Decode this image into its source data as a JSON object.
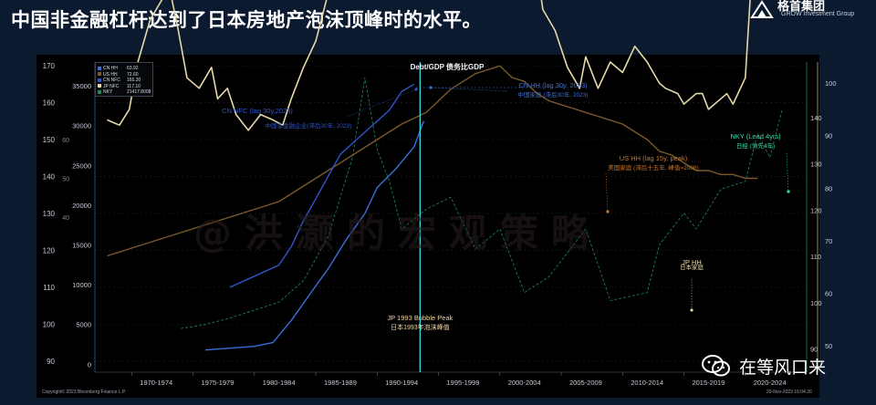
{
  "slide": {
    "title": "中国非金融杠杆达到了日本房地产泡沫顶峰时的水平。",
    "logo_cn": "格首集团",
    "logo_en": "GROW Investment Group",
    "watermark": "@洪灏的宏观策略",
    "wechat_label": "在等风口来",
    "copyright": "Copyright© 2023 Bloomberg Finance L.P.",
    "timestamp": "29-Nov-2023 16:04:20",
    "colors": {
      "background": "#0c1a30",
      "chart_bg": "#000000",
      "title": "#ffffff"
    }
  },
  "legend": [
    {
      "name": "CN HH",
      "value": "63.92",
      "color": "#3b6fd8"
    },
    {
      "name": "US HH",
      "value": "72.60",
      "color": "#7a5a2a"
    },
    {
      "name": "CN NFC",
      "value": "165.30",
      "color": "#2f55c8"
    },
    {
      "name": "JP NFC",
      "value": "117.10",
      "color": "#e6d8a8"
    },
    {
      "name": "NKY",
      "value": "21417.8008",
      "color": "#1e8a5a"
    }
  ],
  "chart_data": {
    "type": "line",
    "title": "Debt/GDP 债务比GDP",
    "x_categories": [
      "1970-1974",
      "1975-1979",
      "1980-1984",
      "1985-1989",
      "1990-1994",
      "1995-1999",
      "2000-2004",
      "2005-2009",
      "2010-2014",
      "2015-2019",
      "2020-2024"
    ],
    "x_range": [
      1967,
      2025
    ],
    "y_axes": [
      {
        "position": "left-outer",
        "ticks": [
          90,
          100,
          110,
          120,
          130,
          140,
          150,
          160,
          170
        ],
        "range": [
          87,
          171
        ]
      },
      {
        "position": "left-inner",
        "ticks": [
          0,
          5000,
          10000,
          15000,
          20000,
          25000,
          30000,
          35000
        ],
        "range": [
          -1000,
          38000
        ]
      },
      {
        "position": "left-partial",
        "ticks": [
          40,
          50,
          60
        ],
        "range": [
          0,
          80
        ]
      },
      {
        "position": "right-inner",
        "ticks": [
          90,
          100,
          110,
          120,
          130,
          140
        ],
        "range": [
          85,
          152
        ]
      },
      {
        "position": "right-outer",
        "ticks": [
          50,
          60,
          70,
          80,
          90,
          100
        ],
        "range": [
          45,
          104
        ]
      }
    ],
    "series": [
      {
        "name": "JP NFC",
        "color": "#e6d8a8",
        "points": [
          [
            1968,
            93
          ],
          [
            1969,
            92
          ],
          [
            1969.8,
            95
          ],
          [
            1970.5,
            104
          ],
          [
            1971.5,
            112
          ],
          [
            1972.5,
            116
          ],
          [
            1973,
            119
          ],
          [
            1973.8,
            110
          ],
          [
            1974.5,
            101
          ],
          [
            1975.5,
            99
          ],
          [
            1976.5,
            103
          ],
          [
            1977,
            97
          ],
          [
            1977.8,
            99
          ],
          [
            1978.5,
            94
          ],
          [
            1979.5,
            91
          ],
          [
            1980.5,
            94
          ],
          [
            1981.5,
            93
          ],
          [
            1982.3,
            92
          ],
          [
            1983,
            97
          ],
          [
            1984,
            103
          ],
          [
            1985,
            108
          ],
          [
            1986,
            117
          ],
          [
            1987,
            127
          ],
          [
            1988,
            138
          ],
          [
            1989,
            143
          ],
          [
            1990,
            148
          ],
          [
            1990.6,
            152
          ],
          [
            1991,
            151
          ],
          [
            1991.5,
            159
          ],
          [
            1992,
            164
          ],
          [
            1993,
            166
          ],
          [
            1993.5,
            162
          ],
          [
            1994,
            165
          ],
          [
            1995,
            162
          ],
          [
            1996,
            160
          ],
          [
            1997,
            156
          ],
          [
            1998,
            149
          ],
          [
            1999,
            142
          ],
          [
            2000,
            138
          ],
          [
            2001,
            131
          ],
          [
            2002,
            120
          ],
          [
            2003,
            122
          ],
          [
            2003.5,
            114
          ],
          [
            2004.5,
            110
          ],
          [
            2005.5,
            103
          ],
          [
            2006.5,
            99
          ],
          [
            2007,
            105
          ],
          [
            2008,
            99
          ],
          [
            2009,
            104
          ],
          [
            2010,
            102
          ],
          [
            2011,
            107
          ],
          [
            2012,
            104
          ],
          [
            2013,
            100
          ],
          [
            2013.5,
            99
          ],
          [
            2014.5,
            98
          ],
          [
            2015,
            96
          ],
          [
            2016,
            98
          ],
          [
            2016.5,
            98
          ],
          [
            2017,
            95
          ],
          [
            2018,
            97
          ],
          [
            2018.5,
            98
          ],
          [
            2019,
            96
          ],
          [
            2020,
            101
          ],
          [
            2020.5,
            120
          ],
          [
            2021,
            128
          ],
          [
            2022,
            131
          ],
          [
            2023,
            132
          ],
          [
            2023.7,
            131
          ],
          [
            2024,
            133
          ],
          [
            2024.5,
            131
          ]
        ]
      },
      {
        "name": "US HH",
        "color": "#7a5a2a",
        "points": [
          [
            1968,
            30
          ],
          [
            1970,
            32
          ],
          [
            1972,
            34
          ],
          [
            1974,
            36
          ],
          [
            1976,
            38
          ],
          [
            1978,
            40
          ],
          [
            1980,
            42
          ],
          [
            1982,
            44
          ],
          [
            1984,
            48
          ],
          [
            1986,
            52
          ],
          [
            1988,
            56
          ],
          [
            1990,
            60
          ],
          [
            1992,
            64
          ],
          [
            1994,
            67
          ],
          [
            1995,
            70
          ],
          [
            1996,
            73
          ],
          [
            1997,
            75
          ],
          [
            1998,
            77
          ],
          [
            1999,
            78
          ],
          [
            2000,
            79
          ],
          [
            2001,
            76
          ],
          [
            2002,
            75
          ],
          [
            2003,
            72
          ],
          [
            2004,
            70
          ],
          [
            2005,
            69
          ],
          [
            2006,
            68
          ],
          [
            2007,
            67
          ],
          [
            2008,
            66
          ],
          [
            2009,
            65
          ],
          [
            2010,
            64
          ],
          [
            2011,
            62
          ],
          [
            2012,
            60
          ],
          [
            2013,
            57
          ],
          [
            2014,
            56
          ],
          [
            2015,
            54
          ],
          [
            2016,
            52
          ],
          [
            2017,
            52
          ],
          [
            2018,
            51
          ],
          [
            2019,
            51
          ],
          [
            2020,
            50
          ],
          [
            2021,
            50
          ]
        ]
      },
      {
        "name": "CN HH",
        "color": "#3b6fd8",
        "points": [
          [
            1976,
            93
          ],
          [
            1978,
            93.5
          ],
          [
            1980,
            94
          ],
          [
            1981.5,
            95
          ],
          [
            1983,
            101
          ],
          [
            1984.5,
            108
          ],
          [
            1986,
            115
          ],
          [
            1987.5,
            123
          ],
          [
            1989,
            130
          ],
          [
            1990,
            137
          ],
          [
            1991.5,
            142
          ],
          [
            1993,
            148
          ],
          [
            1993.8,
            155
          ]
        ]
      },
      {
        "name": "CN NFC",
        "color": "#2f55c8",
        "points": [
          [
            1978,
            110
          ],
          [
            1980,
            113
          ],
          [
            1982,
            116
          ],
          [
            1983,
            121
          ],
          [
            1984,
            128
          ],
          [
            1985,
            134
          ],
          [
            1986,
            140
          ],
          [
            1987,
            146
          ],
          [
            1988,
            149
          ],
          [
            1989,
            152
          ],
          [
            1990,
            155
          ],
          [
            1991,
            158
          ],
          [
            1992,
            163
          ],
          [
            1993,
            165
          ]
        ]
      },
      {
        "name": "NKY",
        "color": "#1e8a5a",
        "points": [
          [
            1974,
            4500
          ],
          [
            1976,
            5000
          ],
          [
            1978,
            5800
          ],
          [
            1980,
            6800
          ],
          [
            1982,
            7800
          ],
          [
            1984,
            10500
          ],
          [
            1986,
            16000
          ],
          [
            1988,
            26000
          ],
          [
            1989,
            36000
          ],
          [
            1990,
            27000
          ],
          [
            1991,
            23000
          ],
          [
            1992,
            17000
          ],
          [
            1994,
            19500
          ],
          [
            1996,
            21000
          ],
          [
            1998,
            14500
          ],
          [
            2000,
            17000
          ],
          [
            2002,
            9000
          ],
          [
            2004,
            11000
          ],
          [
            2007,
            17000
          ],
          [
            2009,
            8000
          ],
          [
            2012,
            9000
          ],
          [
            2013,
            15000
          ],
          [
            2015,
            19000
          ],
          [
            2016,
            17000
          ],
          [
            2018,
            22000
          ],
          [
            2020,
            23000
          ],
          [
            2021,
            29000
          ],
          [
            2022,
            26000
          ],
          [
            2023,
            32000
          ]
        ]
      }
    ],
    "vertical_marker": {
      "x": 1993.5,
      "color": "#3fd0e0",
      "label": "JP 1993 Bubble Peak",
      "label_cn": "日本1993年泡沫峰值"
    },
    "annotations": [
      {
        "text": "CN NFC (lag 30y,2023)",
        "text_cn": "中国非金融企业(滞后30年, 2023)",
        "color": "#2f55c8"
      },
      {
        "text": "CN HH (lag 30y, 2023)",
        "text_cn": "中国家庭 (滞后30年, 2023)",
        "color": "#3b6fd8"
      },
      {
        "text": "US HH (lag 15y, peak)",
        "text_cn": "美国家庭 (滞后十五年, 峰值=2008)",
        "color": "#c8752a"
      },
      {
        "text": "NKY (Lead 4yrs)",
        "text_cn": "日经 (领先4年)",
        "color": "#2ee0b0"
      },
      {
        "text": "JP HH",
        "text_cn": "日本家庭",
        "color": "#e6d8a8"
      }
    ],
    "grid": true,
    "legend_position": "top-left"
  }
}
